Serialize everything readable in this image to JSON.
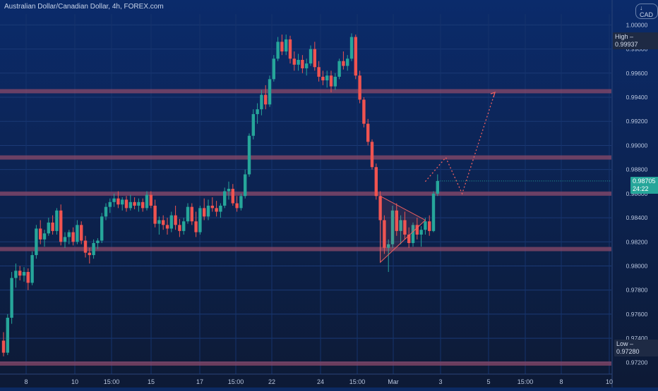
{
  "header": {
    "title": "Australian Dollar/Canadian Dollar, 4h, FOREX.com",
    "currency": "↓ CAD"
  },
  "badges": {
    "high": "High – 0.99937",
    "low": "Low – 0.97280",
    "price": "0.98705",
    "countdown": "24:22"
  },
  "colors": {
    "background_top": "#0b2b6b",
    "background_bottom": "#0d1a35",
    "up": "#26a69a",
    "down": "#ef5350",
    "level_band": "#8b4a6a",
    "pattern": "#f06060"
  },
  "chart_data": {
    "type": "candlestick",
    "title": "Australian Dollar/Canadian Dollar, 4h, FOREX.com",
    "ylim": [
      0.9712,
      1.0009
    ],
    "y_ticks": [
      "1.00000",
      "0.99800",
      "0.99600",
      "0.99400",
      "0.99200",
      "0.99000",
      "0.98800",
      "0.98600",
      "0.98400",
      "0.98200",
      "0.98000",
      "0.97800",
      "0.97600",
      "0.97400",
      "0.97200"
    ],
    "x_ticks": [
      "8",
      "10",
      "15:00",
      "15",
      "17",
      "15:00",
      "22",
      "24",
      "15:00",
      "Mar",
      "3",
      "5",
      "15:00",
      "8",
      "10"
    ],
    "high": 0.99937,
    "low": 0.9728,
    "last_price": 0.98705,
    "candles": [
      [
        0.9738,
        0.9745,
        0.9725,
        0.9728
      ],
      [
        0.9728,
        0.976,
        0.9726,
        0.9757
      ],
      [
        0.9757,
        0.9795,
        0.9752,
        0.979
      ],
      [
        0.979,
        0.9802,
        0.9782,
        0.9796
      ],
      [
        0.9796,
        0.98,
        0.9788,
        0.9792
      ],
      [
        0.9792,
        0.9799,
        0.9787,
        0.9795
      ],
      [
        0.9795,
        0.9798,
        0.978,
        0.9786
      ],
      [
        0.9786,
        0.9812,
        0.9784,
        0.9809
      ],
      [
        0.9809,
        0.9834,
        0.9806,
        0.9831
      ],
      [
        0.9831,
        0.9838,
        0.9818,
        0.9822
      ],
      [
        0.9822,
        0.983,
        0.9816,
        0.9827
      ],
      [
        0.9827,
        0.984,
        0.9825,
        0.9836
      ],
      [
        0.9836,
        0.9842,
        0.9826,
        0.9829
      ],
      [
        0.9829,
        0.9848,
        0.9826,
        0.9846
      ],
      [
        0.9846,
        0.9851,
        0.9817,
        0.982
      ],
      [
        0.982,
        0.9828,
        0.9815,
        0.9824
      ],
      [
        0.9824,
        0.983,
        0.9818,
        0.9828
      ],
      [
        0.9828,
        0.9832,
        0.9817,
        0.982
      ],
      [
        0.982,
        0.9838,
        0.9818,
        0.9834
      ],
      [
        0.9834,
        0.9837,
        0.9818,
        0.9821
      ],
      [
        0.9821,
        0.9825,
        0.9807,
        0.9811
      ],
      [
        0.9811,
        0.9815,
        0.9802,
        0.9809
      ],
      [
        0.9809,
        0.9822,
        0.9806,
        0.9819
      ],
      [
        0.9819,
        0.9823,
        0.9814,
        0.9821
      ],
      [
        0.9821,
        0.9844,
        0.9819,
        0.9841
      ],
      [
        0.9841,
        0.9852,
        0.9838,
        0.9849
      ],
      [
        0.9849,
        0.9856,
        0.9844,
        0.9853
      ],
      [
        0.9853,
        0.986,
        0.9849,
        0.9856
      ],
      [
        0.9856,
        0.9862,
        0.9848,
        0.9851
      ],
      [
        0.9851,
        0.9857,
        0.9846,
        0.9855
      ],
      [
        0.9855,
        0.9858,
        0.9845,
        0.9848
      ],
      [
        0.9848,
        0.9859,
        0.9846,
        0.9853
      ],
      [
        0.9853,
        0.9857,
        0.9847,
        0.985
      ],
      [
        0.985,
        0.9856,
        0.9845,
        0.9853
      ],
      [
        0.9853,
        0.9856,
        0.9845,
        0.9848
      ],
      [
        0.9848,
        0.9862,
        0.9846,
        0.9859
      ],
      [
        0.9859,
        0.9862,
        0.9848,
        0.985
      ],
      [
        0.985,
        0.9855,
        0.9832,
        0.9835
      ],
      [
        0.9835,
        0.9841,
        0.9826,
        0.9838
      ],
      [
        0.9838,
        0.9842,
        0.983,
        0.9834
      ],
      [
        0.9834,
        0.984,
        0.9826,
        0.9831
      ],
      [
        0.9831,
        0.9845,
        0.9828,
        0.9842
      ],
      [
        0.9842,
        0.985,
        0.983,
        0.9834
      ],
      [
        0.9834,
        0.9839,
        0.9824,
        0.9829
      ],
      [
        0.9829,
        0.984,
        0.9826,
        0.9837
      ],
      [
        0.9837,
        0.9852,
        0.9835,
        0.9849
      ],
      [
        0.9849,
        0.9852,
        0.9834,
        0.9837
      ],
      [
        0.9837,
        0.9845,
        0.9824,
        0.9828
      ],
      [
        0.9828,
        0.985,
        0.9826,
        0.9848
      ],
      [
        0.9848,
        0.9856,
        0.9838,
        0.9841
      ],
      [
        0.9841,
        0.9855,
        0.9838,
        0.985
      ],
      [
        0.985,
        0.9857,
        0.9845,
        0.9848
      ],
      [
        0.9848,
        0.9854,
        0.9841,
        0.9845
      ],
      [
        0.9845,
        0.9852,
        0.984,
        0.985
      ],
      [
        0.985,
        0.9865,
        0.9848,
        0.9862
      ],
      [
        0.9862,
        0.987,
        0.9855,
        0.9864
      ],
      [
        0.9864,
        0.9868,
        0.985,
        0.9852
      ],
      [
        0.9852,
        0.9858,
        0.9845,
        0.9848
      ],
      [
        0.9848,
        0.986,
        0.9846,
        0.9858
      ],
      [
        0.9858,
        0.988,
        0.9856,
        0.9876
      ],
      [
        0.9876,
        0.991,
        0.9874,
        0.9908
      ],
      [
        0.9908,
        0.993,
        0.9905,
        0.9926
      ],
      [
        0.9926,
        0.9935,
        0.9918,
        0.993
      ],
      [
        0.993,
        0.9946,
        0.9925,
        0.9942
      ],
      [
        0.9942,
        0.995,
        0.993,
        0.9934
      ],
      [
        0.9934,
        0.9958,
        0.9932,
        0.9955
      ],
      [
        0.9955,
        0.9975,
        0.9953,
        0.9972
      ],
      [
        0.9972,
        0.999,
        0.997,
        0.9986
      ],
      [
        0.9986,
        0.9992,
        0.9975,
        0.9978
      ],
      [
        0.9978,
        0.9992,
        0.9975,
        0.9988
      ],
      [
        0.9988,
        0.9991,
        0.9968,
        0.9972
      ],
      [
        0.9972,
        0.9978,
        0.9962,
        0.9967
      ],
      [
        0.9967,
        0.9976,
        0.9962,
        0.9971
      ],
      [
        0.9971,
        0.9975,
        0.996,
        0.9964
      ],
      [
        0.9964,
        0.9972,
        0.9958,
        0.9968
      ],
      [
        0.9968,
        0.9983,
        0.9966,
        0.998
      ],
      [
        0.998,
        0.9986,
        0.9962,
        0.9965
      ],
      [
        0.9965,
        0.997,
        0.9953,
        0.9957
      ],
      [
        0.9957,
        0.9962,
        0.995,
        0.9954
      ],
      [
        0.9954,
        0.9962,
        0.9948,
        0.9958
      ],
      [
        0.9958,
        0.9962,
        0.9944,
        0.9949
      ],
      [
        0.9949,
        0.996,
        0.9946,
        0.9957
      ],
      [
        0.9957,
        0.9972,
        0.9955,
        0.997
      ],
      [
        0.997,
        0.9978,
        0.9963,
        0.9966
      ],
      [
        0.9966,
        0.9975,
        0.9962,
        0.9972
      ],
      [
        0.9972,
        0.9993,
        0.997,
        0.999
      ],
      [
        0.999,
        0.9992,
        0.9955,
        0.9958
      ],
      [
        0.9958,
        0.9962,
        0.9935,
        0.9938
      ],
      [
        0.9938,
        0.994,
        0.9915,
        0.9918
      ],
      [
        0.9918,
        0.9922,
        0.99,
        0.9903
      ],
      [
        0.9903,
        0.9905,
        0.988,
        0.9882
      ],
      [
        0.9882,
        0.9885,
        0.9855,
        0.9858
      ],
      [
        0.9858,
        0.9862,
        0.9835,
        0.9838
      ],
      [
        0.9838,
        0.9842,
        0.981,
        0.9815
      ],
      [
        0.9815,
        0.9822,
        0.9795,
        0.9818
      ],
      [
        0.9818,
        0.985,
        0.9815,
        0.9846
      ],
      [
        0.9846,
        0.9852,
        0.9825,
        0.9829
      ],
      [
        0.9829,
        0.9842,
        0.9818,
        0.9838
      ],
      [
        0.9838,
        0.9845,
        0.9822,
        0.9826
      ],
      [
        0.9826,
        0.9832,
        0.9815,
        0.9819
      ],
      [
        0.9819,
        0.9836,
        0.9816,
        0.9834
      ],
      [
        0.9834,
        0.984,
        0.9822,
        0.9826
      ],
      [
        0.9826,
        0.9833,
        0.9816,
        0.983
      ],
      [
        0.983,
        0.984,
        0.9826,
        0.9837
      ],
      [
        0.9837,
        0.9842,
        0.9825,
        0.9829
      ],
      [
        0.9829,
        0.9862,
        0.9828,
        0.986
      ],
      [
        0.986,
        0.9876,
        0.9858,
        0.98705
      ]
    ],
    "levels": [
      0.9945,
      0.989,
      0.986,
      0.9814,
      0.9719
    ],
    "triangle": [
      [
        92,
        0.9858
      ],
      [
        92,
        0.9803
      ],
      [
        103,
        0.9838
      ]
    ],
    "projection": [
      [
        103,
        0.987
      ],
      [
        108,
        0.989
      ],
      [
        112,
        0.986
      ],
      [
        120,
        0.9944
      ]
    ]
  }
}
